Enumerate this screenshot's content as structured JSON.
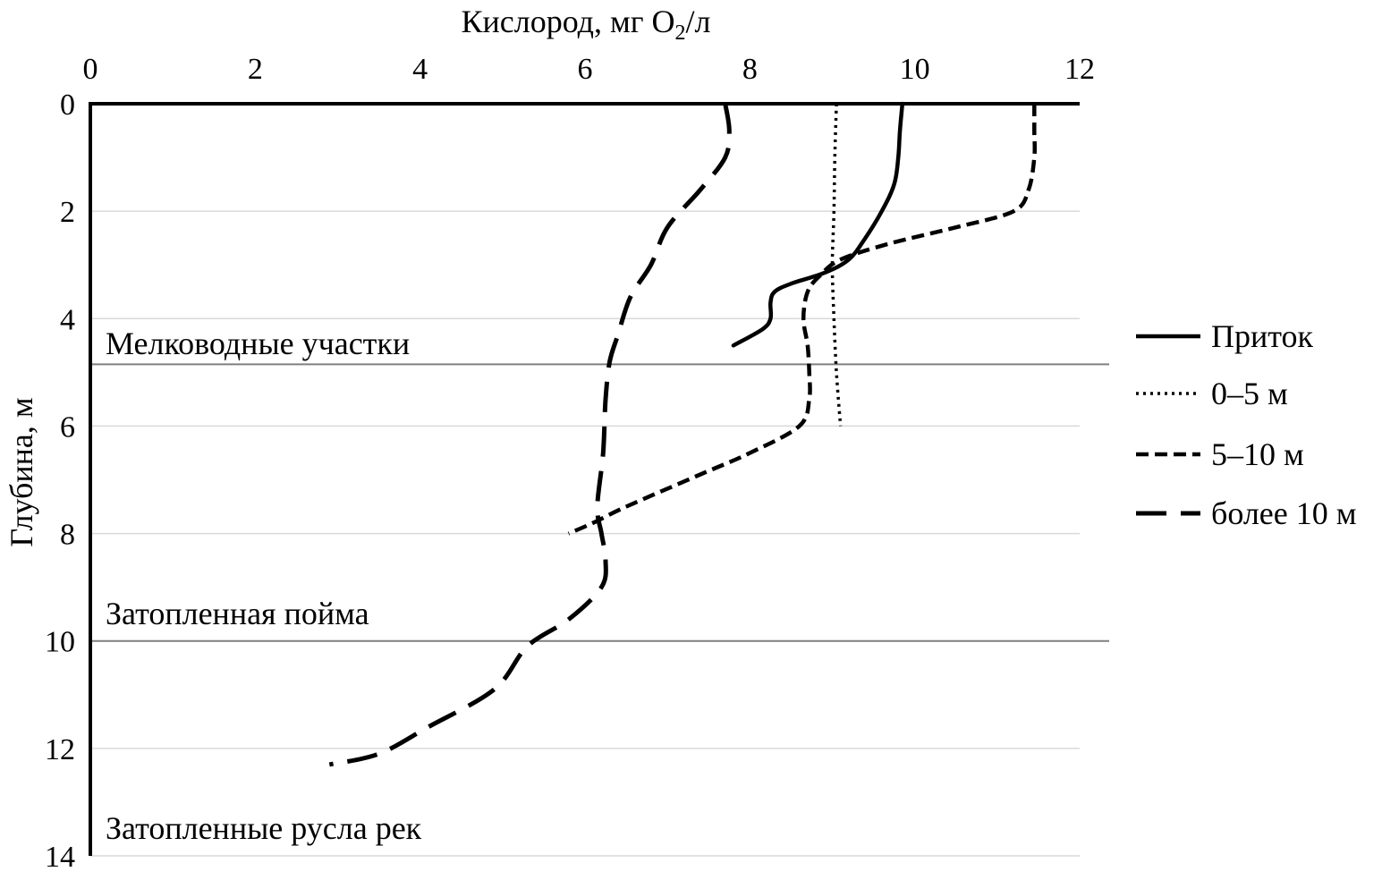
{
  "chart_data": {
    "type": "line",
    "title": "",
    "xlabel": "Кислород, мг O",
    "xlabel_sub": "2",
    "xlabel_suffix": "/л",
    "ylabel": "Глубина, м",
    "xlim": [
      0,
      12
    ],
    "ylim": [
      0,
      14
    ],
    "y_inverted": true,
    "x_axis_position": "top",
    "x_ticks": [
      0,
      2,
      4,
      6,
      8,
      10,
      12
    ],
    "y_ticks": [
      0,
      2,
      4,
      6,
      8,
      10,
      12,
      14
    ],
    "grid": true,
    "legend_position": "right",
    "zones": [
      {
        "label": "Мелководные участки",
        "boundary_depth": 4.85
      },
      {
        "label": "Затопленная пойма",
        "boundary_depth": 10.0
      },
      {
        "label": "Затопленные русла рек",
        "boundary_depth": null
      }
    ],
    "series": [
      {
        "name": "Приток",
        "style": "solid",
        "points": [
          [
            9.85,
            0
          ],
          [
            9.82,
            0.5
          ],
          [
            9.8,
            1
          ],
          [
            9.75,
            1.5
          ],
          [
            9.6,
            2
          ],
          [
            9.4,
            2.5
          ],
          [
            9.2,
            2.9
          ],
          [
            8.9,
            3.15
          ],
          [
            8.5,
            3.35
          ],
          [
            8.3,
            3.5
          ],
          [
            8.25,
            3.7
          ],
          [
            8.25,
            4.0
          ],
          [
            8.15,
            4.2
          ],
          [
            7.8,
            4.5
          ]
        ]
      },
      {
        "name": "0–5 м",
        "style": "dotted",
        "points": [
          [
            9.05,
            0
          ],
          [
            9.03,
            1
          ],
          [
            9.02,
            2
          ],
          [
            9.0,
            3
          ],
          [
            9.02,
            4
          ],
          [
            9.05,
            5
          ],
          [
            9.1,
            6
          ]
        ]
      },
      {
        "name": "5–10 м",
        "style": "dashed",
        "points": [
          [
            11.45,
            0
          ],
          [
            11.45,
            0.5
          ],
          [
            11.45,
            1
          ],
          [
            11.38,
            1.6
          ],
          [
            11.2,
            2
          ],
          [
            10.5,
            2.3
          ],
          [
            9.7,
            2.6
          ],
          [
            9.1,
            2.9
          ],
          [
            8.85,
            3.2
          ],
          [
            8.7,
            3.5
          ],
          [
            8.65,
            4
          ],
          [
            8.7,
            4.5
          ],
          [
            8.72,
            5
          ],
          [
            8.72,
            5.5
          ],
          [
            8.6,
            6
          ],
          [
            8.0,
            6.5
          ],
          [
            7.4,
            6.9
          ],
          [
            6.5,
            7.5
          ],
          [
            6.1,
            7.8
          ],
          [
            5.8,
            8.0
          ]
        ]
      },
      {
        "name": "более 10 м",
        "style": "longdash",
        "points": [
          [
            7.7,
            0
          ],
          [
            7.75,
            0.5
          ],
          [
            7.7,
            1
          ],
          [
            7.4,
            1.6
          ],
          [
            7.0,
            2.3
          ],
          [
            6.8,
            3
          ],
          [
            6.55,
            3.6
          ],
          [
            6.4,
            4.3
          ],
          [
            6.3,
            4.8
          ],
          [
            6.25,
            5.5
          ],
          [
            6.22,
            6.5
          ],
          [
            6.15,
            7.5
          ],
          [
            6.2,
            8
          ],
          [
            6.25,
            8.5
          ],
          [
            6.2,
            9
          ],
          [
            5.8,
            9.6
          ],
          [
            5.3,
            10.1
          ],
          [
            4.9,
            10.9
          ],
          [
            4.1,
            11.6
          ],
          [
            3.5,
            12.1
          ],
          [
            2.9,
            12.3
          ]
        ]
      }
    ]
  }
}
